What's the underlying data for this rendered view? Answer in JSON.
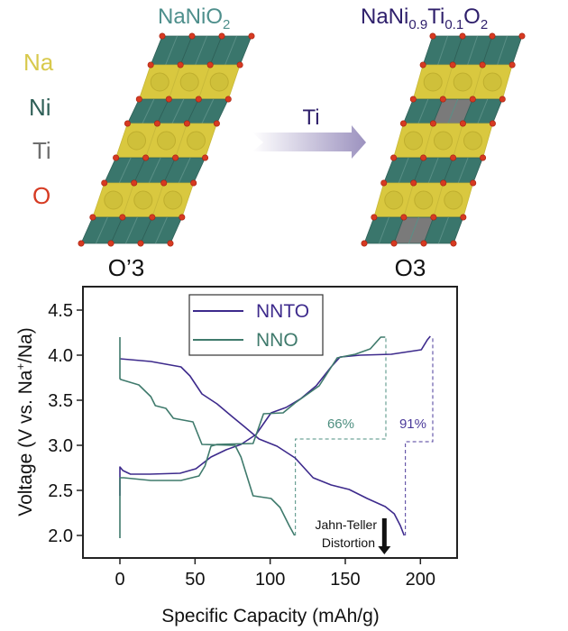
{
  "diagram": {
    "legend": [
      {
        "label": "Na",
        "color": "#d8c94c"
      },
      {
        "label": "Ni",
        "color": "#2f5f57"
      },
      {
        "label": "Ti",
        "color": "#6e6e6e"
      },
      {
        "label": "O",
        "color": "#d63a22"
      }
    ],
    "left": {
      "formula_main": "NaNiO",
      "formula_sub": "2",
      "formula_color": "#4e8f8c",
      "phase": "O’3",
      "layers": [
        "Ni",
        "Na",
        "Ni",
        "Na",
        "Ni",
        "Na",
        "Ni"
      ],
      "ti_cells": []
    },
    "right": {
      "formula_parts": [
        {
          "t": "NaNi",
          "sub": false
        },
        {
          "t": "0.9",
          "sub": true
        },
        {
          "t": "Ti",
          "sub": false
        },
        {
          "t": "0.1",
          "sub": true
        },
        {
          "t": "O",
          "sub": false
        },
        {
          "t": "2",
          "sub": true
        }
      ],
      "formula_color": "#2e1f6b",
      "phase": "O3",
      "layers": [
        "Ni",
        "Na",
        "Ni",
        "Na",
        "Ni",
        "Na",
        "Ni"
      ],
      "ti_cells": [
        [
          2,
          1
        ],
        [
          6,
          1
        ]
      ]
    },
    "arrow_label": "Ti",
    "arrow_label_color": "#2e1f6b",
    "colors": {
      "ni": "#3a766c",
      "na": "#d9c83f",
      "ti": "#7a7a7a",
      "o": "#d63a22"
    }
  },
  "chart_data": {
    "type": "line",
    "xlabel": "Specific Capacity (mAh/g)",
    "ylabel_parts": [
      "Voltage (V vs. Na",
      "+",
      "/Na)"
    ],
    "xlim": [
      -24.6,
      224.4
    ],
    "ylim": [
      1.75,
      4.76
    ],
    "xticks": [
      0,
      50,
      100,
      150,
      200
    ],
    "yticks": [
      "2.0",
      "2.5",
      "3.0",
      "3.5",
      "4.0",
      "4.5"
    ],
    "legend_position": "top-center",
    "series": [
      {
        "name": "NNTO",
        "color": "#3d2a8c",
        "charge": [
          [
            0,
            2.44
          ],
          [
            0,
            2.76
          ],
          [
            2,
            2.72
          ],
          [
            7,
            2.68
          ],
          [
            20,
            2.68
          ],
          [
            40,
            2.69
          ],
          [
            50.6,
            2.74
          ],
          [
            60.6,
            2.87
          ],
          [
            70.6,
            2.95
          ],
          [
            80.6,
            3.01
          ],
          [
            90.6,
            3.12
          ],
          [
            100.6,
            3.36
          ],
          [
            110.6,
            3.42
          ],
          [
            120.6,
            3.52
          ],
          [
            130.6,
            3.66
          ],
          [
            140.6,
            3.87
          ],
          [
            146.6,
            3.98
          ],
          [
            160,
            4.0
          ],
          [
            180.6,
            4.01
          ],
          [
            200.6,
            4.06
          ],
          [
            204.6,
            4.17
          ],
          [
            206.6,
            4.21
          ]
        ],
        "discharge": [
          [
            0,
            3.96
          ],
          [
            20.6,
            3.93
          ],
          [
            40.6,
            3.87
          ],
          [
            46.6,
            3.77
          ],
          [
            54.6,
            3.57
          ],
          [
            64.6,
            3.46
          ],
          [
            74.6,
            3.32
          ],
          [
            82.6,
            3.21
          ],
          [
            92.6,
            3.07
          ],
          [
            104.6,
            2.99
          ],
          [
            116.6,
            2.86
          ],
          [
            128.6,
            2.64
          ],
          [
            140.6,
            2.56
          ],
          [
            152.6,
            2.51
          ],
          [
            164.6,
            2.41
          ],
          [
            176.6,
            2.32
          ],
          [
            182.6,
            2.24
          ],
          [
            186.6,
            2.11
          ],
          [
            189.2,
            2.0
          ]
        ]
      },
      {
        "name": "NNO",
        "color": "#3f7a6c",
        "charge": [
          [
            0,
            1.97
          ],
          [
            0,
            2.64
          ],
          [
            2.6,
            2.64
          ],
          [
            20.6,
            2.61
          ],
          [
            40.6,
            2.61
          ],
          [
            52.6,
            2.66
          ],
          [
            56.6,
            2.77
          ],
          [
            60.6,
            2.99
          ],
          [
            64.6,
            3.01
          ],
          [
            88.6,
            3.02
          ],
          [
            95.6,
            3.35
          ],
          [
            108.6,
            3.36
          ],
          [
            116.6,
            3.47
          ],
          [
            132.6,
            3.66
          ],
          [
            144.6,
            3.97
          ],
          [
            156.6,
            4.01
          ],
          [
            166.6,
            4.07
          ],
          [
            173.6,
            4.2
          ],
          [
            176.6,
            4.2
          ]
        ],
        "discharge": [
          [
            0,
            4.2
          ],
          [
            0,
            3.74
          ],
          [
            0.6,
            3.73
          ],
          [
            12.6,
            3.67
          ],
          [
            20.6,
            3.54
          ],
          [
            23.6,
            3.44
          ],
          [
            30.6,
            3.41
          ],
          [
            35.6,
            3.3
          ],
          [
            48.6,
            3.26
          ],
          [
            54.6,
            3.01
          ],
          [
            76.6,
            3.0
          ],
          [
            80.6,
            2.87
          ],
          [
            88.6,
            2.44
          ],
          [
            100.6,
            2.41
          ],
          [
            106.6,
            2.31
          ],
          [
            112.6,
            2.11
          ],
          [
            116.2,
            2.0
          ]
        ]
      }
    ],
    "annotations": {
      "nno_retention": {
        "text": "66%",
        "color": "#4e8f80",
        "guide": [
          [
            116.8,
            2.0
          ],
          [
            116.8,
            3.07
          ],
          [
            177,
            3.07
          ],
          [
            177,
            4.2
          ]
        ],
        "at": [
          147,
          3.19
        ]
      },
      "nnto_retention": {
        "text": "91%",
        "color": "#4b3a9a",
        "guide": [
          [
            190,
            2.0
          ],
          [
            190,
            3.04
          ],
          [
            208.2,
            3.04
          ],
          [
            208.2,
            4.2
          ]
        ],
        "at": [
          195,
          3.19
        ]
      },
      "jahn_teller": {
        "line1": "Jahn-Teller",
        "line2": "Distortion",
        "arrow": [
          [
            176,
            2.19
          ],
          [
            176,
            1.79
          ]
        ]
      }
    }
  }
}
